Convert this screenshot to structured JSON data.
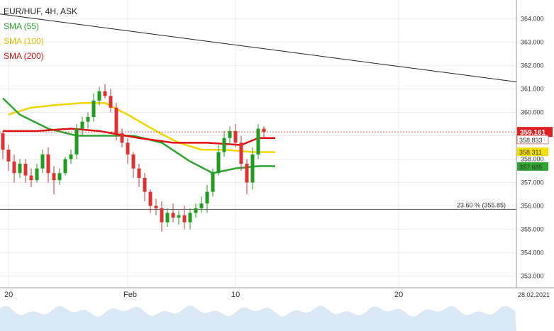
{
  "legend": {
    "instrument": "EUR/HUF, 4H, ASK",
    "sma55": "SMA (55)",
    "sma100": "SMA (100)",
    "sma200": "SMA (200)"
  },
  "colors": {
    "sma55": "#2ea52e",
    "sma100": "#f2d600",
    "sma200": "#e01010",
    "candle_up": "#1f9d1f",
    "candle_down": "#e03030",
    "trend": "#222222",
    "fib": "#555555",
    "price": "#d03030"
  },
  "chart_data": {
    "type": "candlestick",
    "ylim": [
      352.5,
      364.8
    ],
    "y_ticks": [
      "353.000",
      "354.000",
      "355.000",
      "356.000",
      "357.000",
      "358.000",
      "359.000",
      "360.000",
      "361.000",
      "362.000",
      "363.000",
      "364.000"
    ],
    "x_ticks": [
      "20",
      "Feb",
      "10",
      "20"
    ],
    "date_label": "28.02.2021",
    "fib_label": "23.60 % (355.85)",
    "fib_level": 355.85,
    "trendline": [
      [
        0,
        364.2
      ],
      [
        100,
        361.3
      ]
    ],
    "last_price": "359.161",
    "badges": [
      {
        "label": "358.833",
        "value": 358.833,
        "series": "sma200"
      },
      {
        "label": "358.311",
        "value": 358.311,
        "series": "sma100"
      },
      {
        "label": "357.685",
        "value": 357.685,
        "series": "sma55"
      }
    ],
    "sma55": [
      [
        0,
        360.6
      ],
      [
        3,
        359.9
      ],
      [
        8,
        359.3
      ],
      [
        13,
        359.0
      ],
      [
        18,
        359.0
      ],
      [
        23,
        359.0
      ],
      [
        28,
        358.7
      ],
      [
        33,
        357.9
      ],
      [
        37,
        357.4
      ],
      [
        41,
        357.6
      ],
      [
        45,
        357.7
      ],
      [
        48,
        357.7
      ]
    ],
    "sma100": [
      [
        1,
        359.9
      ],
      [
        5,
        360.2
      ],
      [
        9,
        360.3
      ],
      [
        14,
        360.4
      ],
      [
        18,
        360.4
      ],
      [
        22,
        359.9
      ],
      [
        27,
        359.2
      ],
      [
        31,
        358.7
      ],
      [
        35,
        358.4
      ],
      [
        39,
        358.4
      ],
      [
        44,
        358.3
      ],
      [
        48,
        358.3
      ]
    ],
    "sma200": [
      [
        0,
        359.2
      ],
      [
        6,
        359.2
      ],
      [
        12,
        359.3
      ],
      [
        17,
        359.2
      ],
      [
        24,
        358.9
      ],
      [
        30,
        358.7
      ],
      [
        36,
        358.7
      ],
      [
        42,
        358.6
      ],
      [
        45,
        358.9
      ],
      [
        48,
        358.9
      ]
    ],
    "candles": [
      [
        359.1,
        359.2,
        358.0,
        358.4
      ],
      [
        358.4,
        358.6,
        357.5,
        357.9
      ],
      [
        357.9,
        358.2,
        357.0,
        357.4
      ],
      [
        357.4,
        358.0,
        357.2,
        357.8
      ],
      [
        357.8,
        358.0,
        357.0,
        357.3
      ],
      [
        357.3,
        357.6,
        356.8,
        357.1
      ],
      [
        357.1,
        357.8,
        357.0,
        357.6
      ],
      [
        357.6,
        358.4,
        357.4,
        358.2
      ],
      [
        358.2,
        358.5,
        357.0,
        357.4
      ],
      [
        357.4,
        357.7,
        356.5,
        357.1
      ],
      [
        357.1,
        357.6,
        356.9,
        357.4
      ],
      [
        357.4,
        358.1,
        357.3,
        358.0
      ],
      [
        358.0,
        358.4,
        357.8,
        358.2
      ],
      [
        358.2,
        359.5,
        358.0,
        359.3
      ],
      [
        359.3,
        359.8,
        359.0,
        359.6
      ],
      [
        359.6,
        360.0,
        359.3,
        359.8
      ],
      [
        359.8,
        360.8,
        359.6,
        360.5
      ],
      [
        360.5,
        361.1,
        360.3,
        360.9
      ],
      [
        360.9,
        361.2,
        360.6,
        360.7
      ],
      [
        360.7,
        361.0,
        360.0,
        360.2
      ],
      [
        360.2,
        360.4,
        358.8,
        359.1
      ],
      [
        359.1,
        359.3,
        358.5,
        358.7
      ],
      [
        358.7,
        358.9,
        357.8,
        358.2
      ],
      [
        358.2,
        358.3,
        357.2,
        357.6
      ],
      [
        357.6,
        357.8,
        356.8,
        357.2
      ],
      [
        357.2,
        357.4,
        356.2,
        356.6
      ],
      [
        356.6,
        356.7,
        355.7,
        356.0
      ],
      [
        356.0,
        356.3,
        355.6,
        355.9
      ],
      [
        355.9,
        356.2,
        354.9,
        355.3
      ],
      [
        355.3,
        355.9,
        355.1,
        355.7
      ],
      [
        355.7,
        356.1,
        355.3,
        355.5
      ],
      [
        355.5,
        355.8,
        355.2,
        355.6
      ],
      [
        355.6,
        356.0,
        355.0,
        355.3
      ],
      [
        355.3,
        355.9,
        355.0,
        355.7
      ],
      [
        355.7,
        356.1,
        355.5,
        355.9
      ],
      [
        355.9,
        356.4,
        355.7,
        356.1
      ],
      [
        356.1,
        356.9,
        355.7,
        356.6
      ],
      [
        356.6,
        357.6,
        356.4,
        357.4
      ],
      [
        357.4,
        358.6,
        357.3,
        358.3
      ],
      [
        358.3,
        359.2,
        358.1,
        358.9
      ],
      [
        358.9,
        359.4,
        358.6,
        359.2
      ],
      [
        359.2,
        359.5,
        358.5,
        358.7
      ],
      [
        358.7,
        359.0,
        357.5,
        357.8
      ],
      [
        357.8,
        358.0,
        356.5,
        357.0
      ],
      [
        357.0,
        358.5,
        356.7,
        358.2
      ],
      [
        358.2,
        359.5,
        358.0,
        359.3
      ],
      [
        359.3,
        359.4,
        358.9,
        359.16
      ]
    ]
  }
}
